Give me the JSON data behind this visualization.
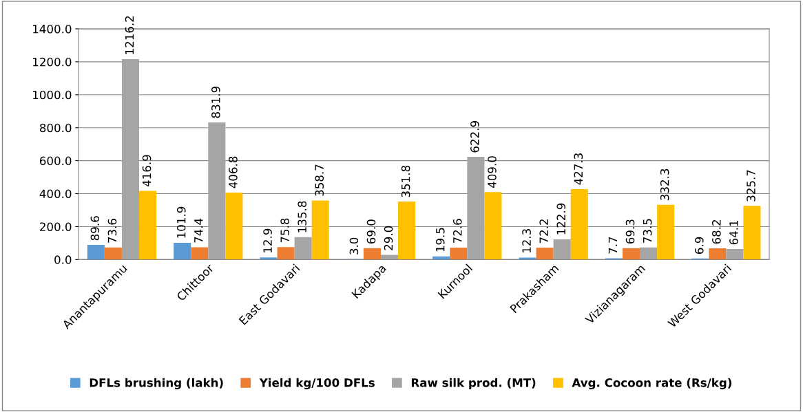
{
  "chart_data": {
    "type": "bar",
    "categories": [
      "Anantapuramu",
      "Chittoor",
      "East Godavari",
      "Kadapa",
      "Kurnool",
      "Prakasham",
      "Vizianagaram",
      "West Godavari"
    ],
    "series": [
      {
        "name": "DFLs brushing (lakh)",
        "color": "#5b9bd5",
        "values": [
          89.6,
          101.9,
          12.9,
          3,
          19.5,
          12.3,
          7.7,
          6.9
        ],
        "value_labels": [
          "89.6",
          "101.9",
          "12.9",
          "3.0",
          "19.5",
          "12.3",
          "7.7",
          "6.9"
        ]
      },
      {
        "name": "Yield kg/100 DFLs",
        "color": "#ed7d31",
        "values": [
          73.6,
          74.4,
          75.8,
          69,
          72.6,
          72.2,
          69.3,
          68.2
        ],
        "value_labels": [
          "73.6",
          "74.4",
          "75.8",
          "69.0",
          "72.6",
          "72.2",
          "69.3",
          "68.2"
        ]
      },
      {
        "name": "Raw silk prod. (MT)",
        "color": "#a5a5a5",
        "values": [
          1216.2,
          831.9,
          135.8,
          29,
          622.9,
          122.9,
          73.5,
          64.1
        ],
        "value_labels": [
          "1216.2",
          "831.9",
          "135.8",
          "29.0",
          "622.9",
          "122.9",
          "73.5",
          "64.1"
        ]
      },
      {
        "name": "Avg. Cocoon rate (Rs/kg)",
        "color": "#ffc000",
        "values": [
          416.9,
          406.8,
          358.7,
          351.8,
          409,
          427.3,
          332.3,
          325.7
        ],
        "value_labels": [
          "416.9",
          "406.8",
          "358.7",
          "351.8",
          "409.0",
          "427.3",
          "332.3",
          "325.7"
        ]
      }
    ],
    "ylim": [
      0,
      1400
    ],
    "yticks": [
      {
        "value": 0,
        "label": "0.0"
      },
      {
        "value": 200,
        "label": "200.0"
      },
      {
        "value": 400,
        "label": "400.0"
      },
      {
        "value": 600,
        "label": "600.0"
      },
      {
        "value": 800,
        "label": "800.0"
      },
      {
        "value": 1000,
        "label": "1000.0"
      },
      {
        "value": 1200,
        "label": "1200.0"
      },
      {
        "value": 1400,
        "label": "1400.0"
      }
    ],
    "grid": "y",
    "legend": "bottom"
  }
}
